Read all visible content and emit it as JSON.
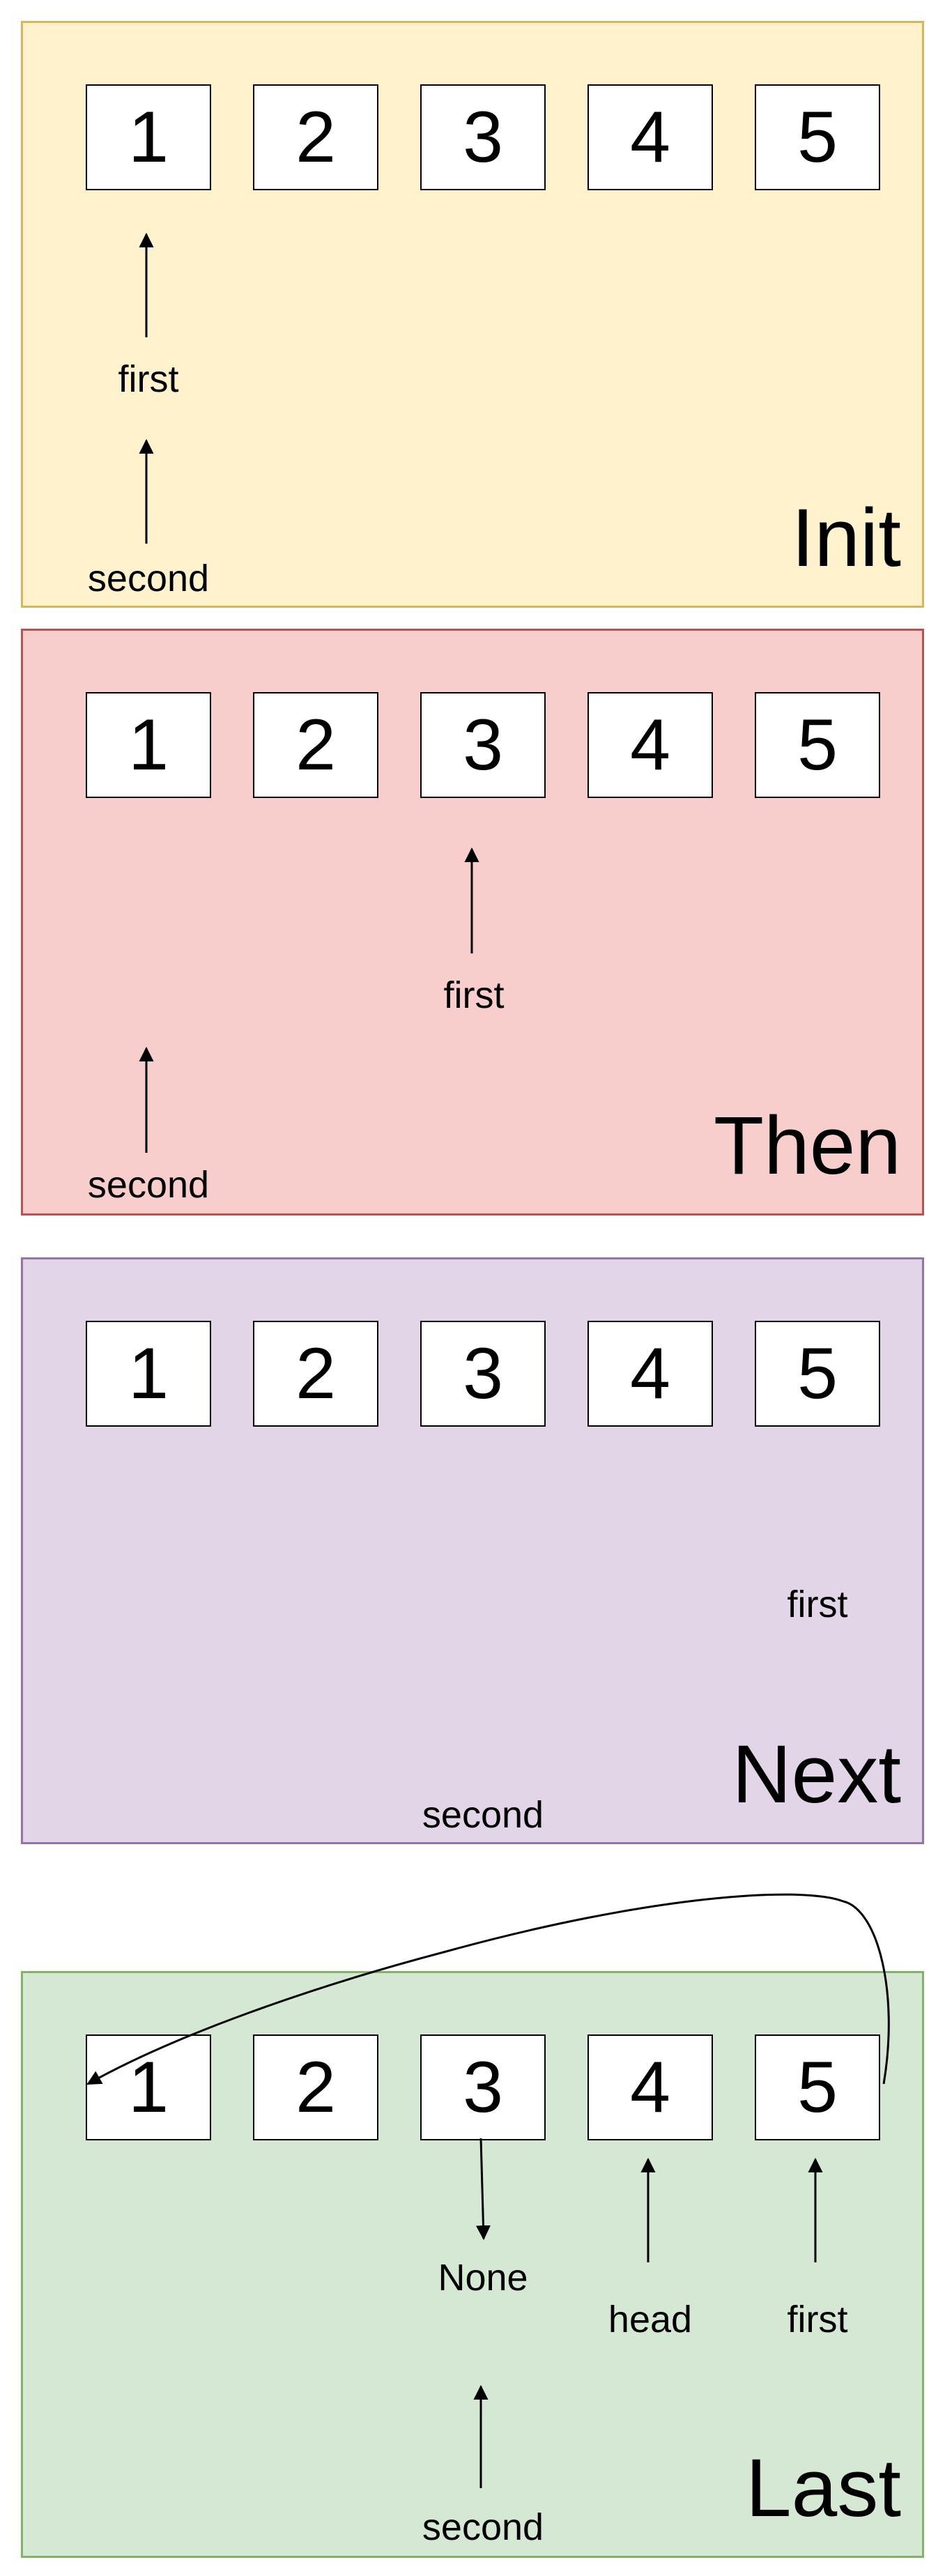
{
  "nodes": [
    "1",
    "2",
    "3",
    "4",
    "5"
  ],
  "panels": [
    {
      "title": "Init",
      "fill": "#fff2cc",
      "border": "#d6b656",
      "labels": [
        "first",
        "second"
      ]
    },
    {
      "title": "Then",
      "fill": "#f8cecc",
      "border": "#b85450",
      "labels": [
        "first",
        "second"
      ]
    },
    {
      "title": "Next",
      "fill": "#e1d5e7",
      "border": "#9673a6",
      "labels": [
        "first",
        "second"
      ]
    },
    {
      "title": "Last",
      "fill": "#d5e8d4",
      "border": "#82b366",
      "labels": [
        "None",
        "head",
        "first",
        "second"
      ]
    }
  ]
}
